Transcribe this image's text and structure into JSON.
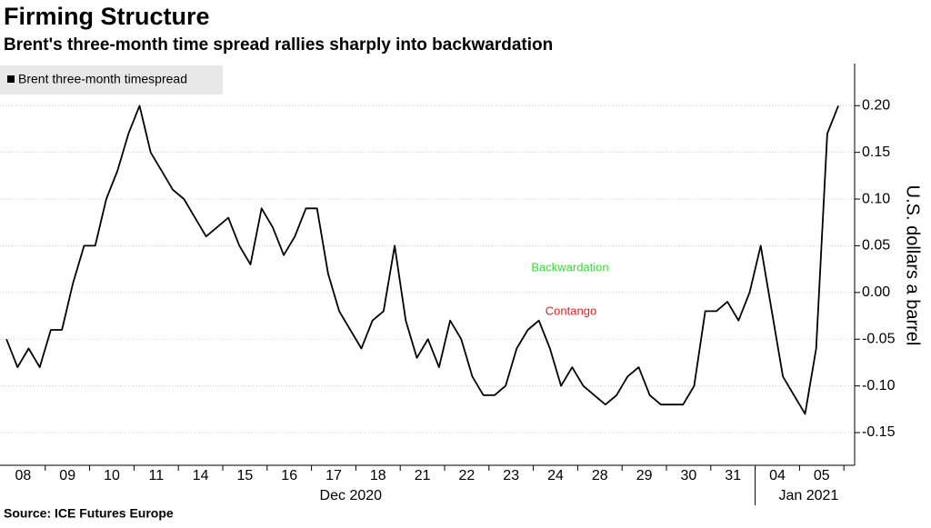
{
  "chart_data": {
    "type": "line",
    "title": "Firming Structure",
    "subtitle": "Brent's three-month time spread rallies sharply into backwardation",
    "source": "Source: ICE Futures Europe",
    "y_label": "U.S. dollars a barrel",
    "categories": [
      "08",
      "09",
      "10",
      "11",
      "14",
      "15",
      "16",
      "17",
      "18",
      "21",
      "22",
      "23",
      "24",
      "28",
      "29",
      "30",
      "31",
      "04",
      "05"
    ],
    "months": [
      "Dec 2020",
      "Jan 2021"
    ],
    "annotations": [
      {
        "text": "Backwardation",
        "color": "#33dd33"
      },
      {
        "text": "Contango",
        "color": "#dd2222"
      }
    ],
    "series": [
      {
        "name": "Brent three-month timespread",
        "color": "#000000",
        "values": [
          [
            -0.05,
            -0.08,
            -0.06,
            -0.08
          ],
          [
            -0.04,
            -0.04,
            0.01,
            0.05
          ],
          [
            0.05,
            0.1,
            0.13,
            0.17
          ],
          [
            0.2,
            0.15,
            0.13,
            0.11
          ],
          [
            0.1,
            0.08,
            0.06,
            0.07
          ],
          [
            0.08,
            0.05,
            0.03,
            0.09
          ],
          [
            0.07,
            0.04,
            0.06,
            0.09
          ],
          [
            0.09,
            0.02,
            -0.02,
            -0.04
          ],
          [
            -0.06,
            -0.03,
            -0.02,
            0.05
          ],
          [
            -0.03,
            -0.07,
            -0.05,
            -0.08
          ],
          [
            -0.03,
            -0.05,
            -0.09,
            -0.11
          ],
          [
            -0.11,
            -0.1,
            -0.06,
            -0.04
          ],
          [
            -0.03,
            -0.06,
            -0.1,
            -0.08
          ],
          [
            -0.1,
            -0.11,
            -0.12,
            -0.11
          ],
          [
            -0.09,
            -0.08,
            -0.11,
            -0.12
          ],
          [
            -0.12,
            -0.12,
            -0.1,
            -0.02
          ],
          [
            -0.02,
            -0.01,
            -0.03,
            0.0
          ],
          [
            0.05,
            -0.02,
            -0.09,
            -0.11
          ],
          [
            -0.13,
            -0.06,
            0.17,
            0.2
          ]
        ]
      }
    ],
    "ylim": [
      -0.185,
      0.245
    ],
    "yticks": [
      {
        "value": -0.15,
        "label": "-0.15"
      },
      {
        "value": -0.1,
        "label": "-0.10"
      },
      {
        "value": -0.05,
        "label": "-0.05"
      },
      {
        "value": 0,
        "label": "0.00"
      },
      {
        "value": 0.05,
        "label": "0.05"
      },
      {
        "value": 0.1,
        "label": "0.10"
      },
      {
        "value": 0.15,
        "label": "0.15"
      },
      {
        "value": 0.2,
        "label": "0.20"
      }
    ],
    "grid": true,
    "legend": "top-left"
  }
}
